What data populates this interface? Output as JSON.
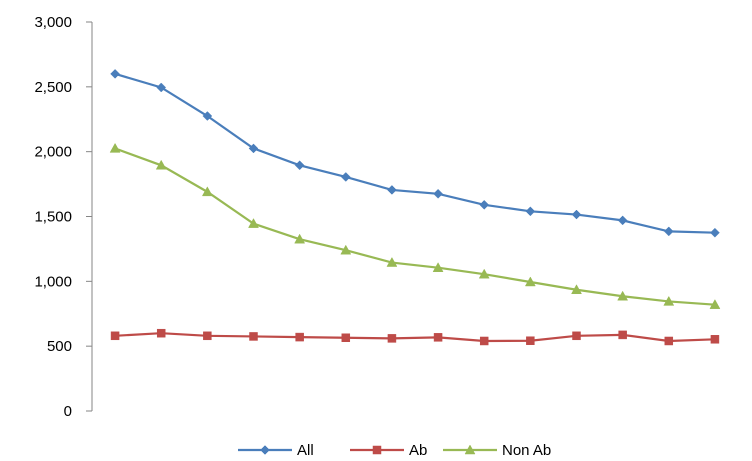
{
  "chart_data": {
    "type": "line",
    "title": "",
    "xlabel": "",
    "ylabel": "",
    "x": [
      1,
      2,
      3,
      4,
      5,
      6,
      7,
      8,
      9,
      10,
      11,
      12,
      13,
      14
    ],
    "ylim": [
      0,
      3000
    ],
    "yticks": [
      0,
      500,
      1000,
      1500,
      2000,
      2500,
      3000
    ],
    "ytick_labels": [
      "0",
      "500",
      "1,000",
      "1,500",
      "2,000",
      "2,500",
      "3,000"
    ],
    "grid": false,
    "legend_position": "bottom",
    "series": [
      {
        "name": "All",
        "color": "#4a7ebb",
        "marker": "diamond",
        "values": [
          2600,
          2495,
          2275,
          2025,
          1895,
          1805,
          1705,
          1675,
          1590,
          1540,
          1515,
          1470,
          1385,
          1375
        ]
      },
      {
        "name": "Ab",
        "color": "#be4b48",
        "marker": "square",
        "values": [
          580,
          600,
          580,
          575,
          570,
          565,
          560,
          568,
          540,
          542,
          580,
          587,
          540,
          553
        ]
      },
      {
        "name": "Non Ab",
        "color": "#98b954",
        "marker": "triangle",
        "values": [
          2025,
          1895,
          1690,
          1445,
          1325,
          1240,
          1145,
          1105,
          1055,
          995,
          935,
          885,
          845,
          820
        ]
      }
    ]
  }
}
